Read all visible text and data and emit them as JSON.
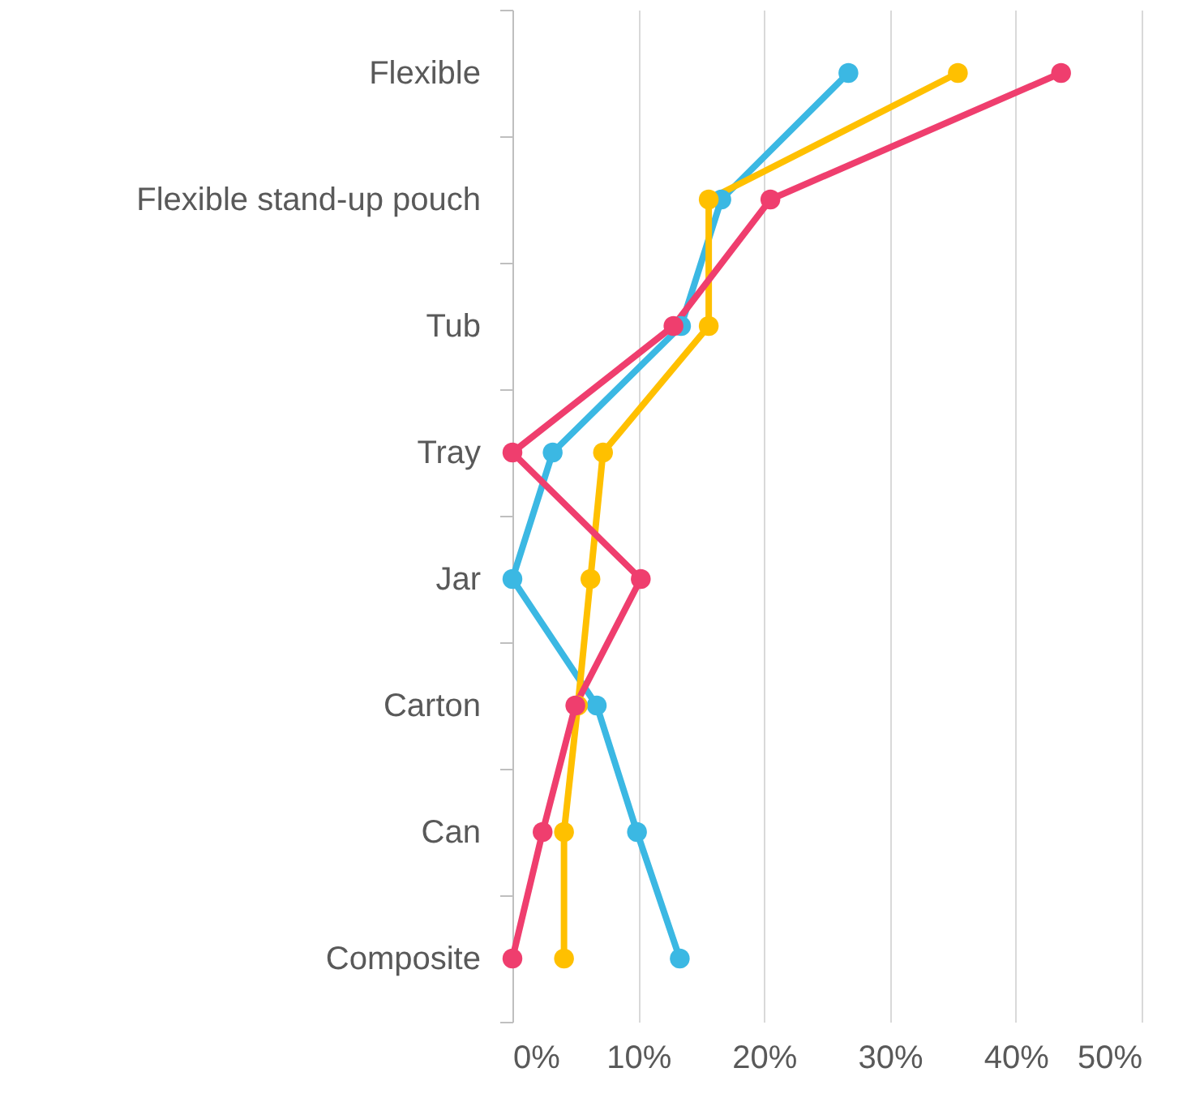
{
  "chart_data": {
    "type": "line",
    "categories": [
      "Flexible",
      "Flexible stand-up pouch",
      "Tub",
      "Tray",
      "Jar",
      "Carton",
      "Can",
      "Composite"
    ],
    "orientation": "horizontal",
    "series": [
      {
        "color": "#3bb8e3",
        "values": [
          26.7,
          16.6,
          13.4,
          3.2,
          0,
          6.7,
          9.9,
          13.3
        ]
      },
      {
        "color": "#ffc000",
        "values": [
          35.4,
          15.6,
          15.6,
          7.2,
          6.2,
          5.2,
          4.1,
          4.1
        ]
      },
      {
        "color": "#ef3e6e",
        "values": [
          43.6,
          20.5,
          12.8,
          0,
          10.2,
          5.0,
          2.4,
          0
        ]
      }
    ],
    "xlim": [
      0,
      50
    ],
    "xticks": [
      {
        "value": 0,
        "label": "0%"
      },
      {
        "value": 10,
        "label": "10%"
      },
      {
        "value": 20,
        "label": "20%"
      },
      {
        "value": 30,
        "label": "30%"
      },
      {
        "value": 40,
        "label": "40%"
      },
      {
        "value": 50,
        "label": "50%"
      }
    ],
    "grid": "x",
    "marker": "circle",
    "line_style": "solid"
  }
}
